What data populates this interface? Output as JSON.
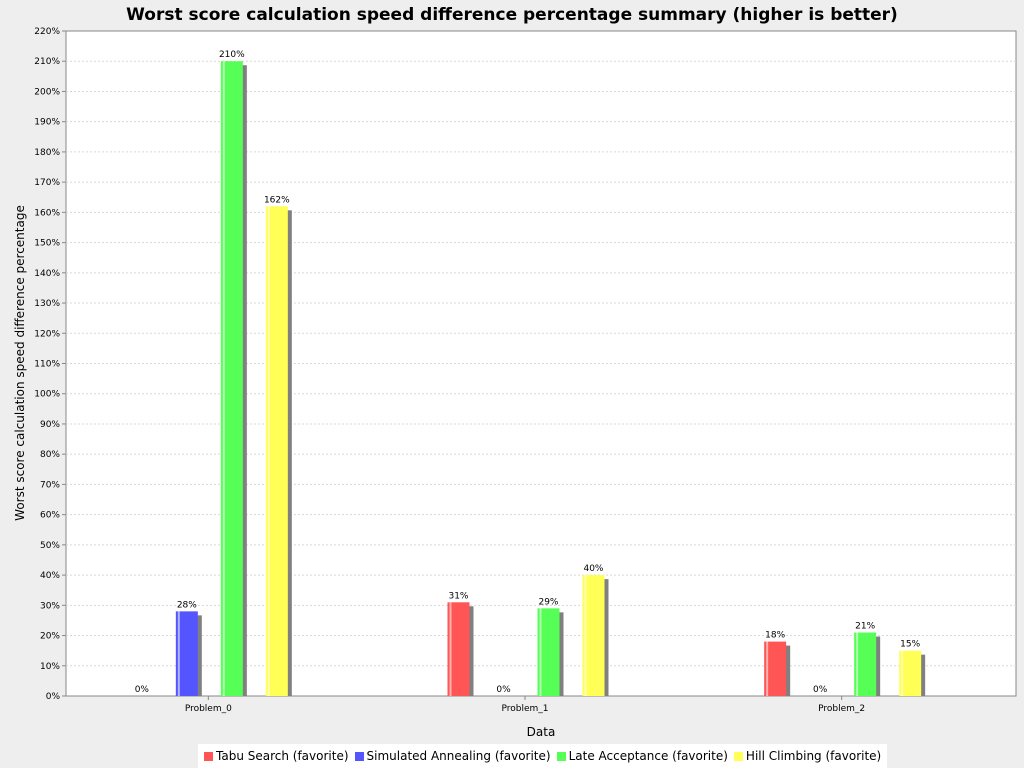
{
  "chart_data": {
    "type": "bar",
    "title": "Worst score calculation speed difference percentage summary (higher is better)",
    "xlabel": "Data",
    "ylabel": "Worst score calculation speed difference percentage",
    "categories": [
      "Problem_0",
      "Problem_1",
      "Problem_2"
    ],
    "ylim": [
      0,
      220
    ],
    "ytick_step": 10,
    "ytick_suffix": "%",
    "grid": true,
    "legend_position": "bottom",
    "series": [
      {
        "name": "Tabu Search (favorite)",
        "color": "#ff5555",
        "values": [
          0,
          31,
          18
        ],
        "labels": [
          "0%",
          "31%",
          "18%"
        ]
      },
      {
        "name": "Simulated Annealing (favorite)",
        "color": "#5555ff",
        "values": [
          28,
          0,
          0
        ],
        "labels": [
          "28%",
          "0%",
          "0%"
        ]
      },
      {
        "name": "Late Acceptance (favorite)",
        "color": "#55ff55",
        "values": [
          210,
          29,
          21
        ],
        "labels": [
          "210%",
          "29%",
          "21%"
        ]
      },
      {
        "name": "Hill Climbing (favorite)",
        "color": "#ffff55",
        "values": [
          162,
          40,
          15
        ],
        "labels": [
          "162%",
          "40%",
          "15%"
        ]
      }
    ]
  }
}
